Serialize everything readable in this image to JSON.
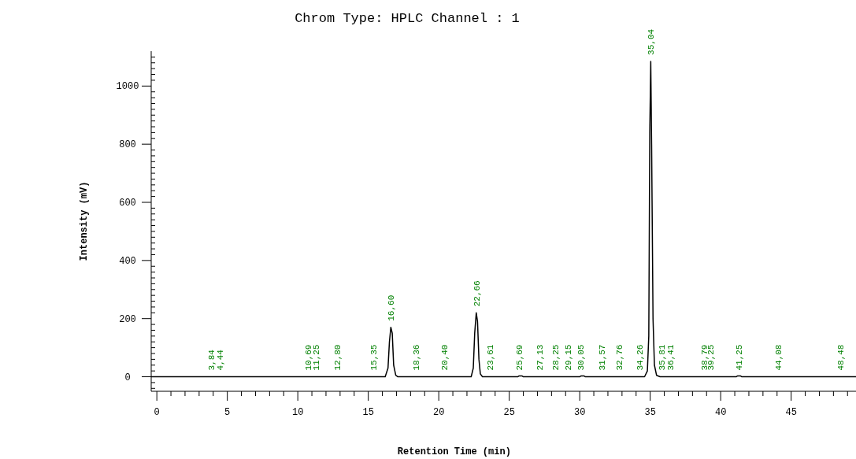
{
  "chart_data": {
    "type": "line",
    "title": "Chrom Type: HPLC Channel : 1",
    "xlabel": "Retention Time (min)",
    "ylabel": "Intensity (mV)",
    "xlim": [
      -0.4,
      49.6
    ],
    "ylim": [
      -50,
      1120
    ],
    "xticks": [
      0,
      {
        "value": 1,
        "label": null
      },
      {
        "value": 2,
        "label": null
      },
      {
        "value": 3,
        "label": null
      },
      {
        "value": 4,
        "label": null
      },
      5,
      {
        "value": 6,
        "label": null
      },
      {
        "value": 7,
        "label": null
      },
      {
        "value": 8,
        "label": null
      },
      {
        "value": 9,
        "label": null
      },
      10,
      {
        "value": 11,
        "label": null
      },
      {
        "value": 12,
        "label": null
      },
      {
        "value": 13,
        "label": null
      },
      {
        "value": 14,
        "label": null
      },
      15,
      {
        "value": 16,
        "label": null
      },
      {
        "value": 17,
        "label": null
      },
      {
        "value": 18,
        "label": null
      },
      {
        "value": 19,
        "label": null
      },
      20,
      {
        "value": 21,
        "label": null
      },
      {
        "value": 22,
        "label": null
      },
      {
        "value": 23,
        "label": null
      },
      {
        "value": 24,
        "label": null
      },
      25,
      {
        "value": 26,
        "label": null
      },
      {
        "value": 27,
        "label": null
      },
      {
        "value": 28,
        "label": null
      },
      {
        "value": 29,
        "label": null
      },
      30,
      {
        "value": 31,
        "label": null
      },
      {
        "value": 32,
        "label": null
      },
      {
        "value": 33,
        "label": null
      },
      {
        "value": 34,
        "label": null
      },
      35,
      {
        "value": 36,
        "label": null
      },
      {
        "value": 37,
        "label": null
      },
      {
        "value": 38,
        "label": null
      },
      {
        "value": 39,
        "label": null
      },
      40,
      {
        "value": 41,
        "label": null
      },
      {
        "value": 42,
        "label": null
      },
      {
        "value": 43,
        "label": null
      },
      {
        "value": 44,
        "label": null
      },
      45,
      {
        "value": 46,
        "label": null
      },
      {
        "value": 47,
        "label": null
      },
      {
        "value": 48,
        "label": null
      },
      {
        "value": 49,
        "label": null
      }
    ],
    "yticks": [
      {
        "value": -40,
        "label": null
      },
      {
        "value": -20,
        "label": null
      },
      0,
      {
        "value": 20,
        "label": null
      },
      {
        "value": 40,
        "label": null
      },
      {
        "value": 60,
        "label": null
      },
      {
        "value": 80,
        "label": null
      },
      {
        "value": 100,
        "label": null
      },
      {
        "value": 120,
        "label": null
      },
      {
        "value": 140,
        "label": null
      },
      {
        "value": 160,
        "label": null
      },
      {
        "value": 180,
        "label": null
      },
      200,
      {
        "value": 220,
        "label": null
      },
      {
        "value": 240,
        "label": null
      },
      {
        "value": 260,
        "label": null
      },
      {
        "value": 280,
        "label": null
      },
      {
        "value": 300,
        "label": null
      },
      {
        "value": 320,
        "label": null
      },
      {
        "value": 340,
        "label": null
      },
      {
        "value": 360,
        "label": null
      },
      {
        "value": 380,
        "label": null
      },
      400,
      {
        "value": 420,
        "label": null
      },
      {
        "value": 440,
        "label": null
      },
      {
        "value": 460,
        "label": null
      },
      {
        "value": 480,
        "label": null
      },
      {
        "value": 500,
        "label": null
      },
      {
        "value": 520,
        "label": null
      },
      {
        "value": 540,
        "label": null
      },
      {
        "value": 560,
        "label": null
      },
      {
        "value": 580,
        "label": null
      },
      600,
      {
        "value": 620,
        "label": null
      },
      {
        "value": 640,
        "label": null
      },
      {
        "value": 660,
        "label": null
      },
      {
        "value": 680,
        "label": null
      },
      {
        "value": 700,
        "label": null
      },
      {
        "value": 720,
        "label": null
      },
      {
        "value": 740,
        "label": null
      },
      {
        "value": 760,
        "label": null
      },
      {
        "value": 780,
        "label": null
      },
      800,
      {
        "value": 820,
        "label": null
      },
      {
        "value": 840,
        "label": null
      },
      {
        "value": 860,
        "label": null
      },
      {
        "value": 880,
        "label": null
      },
      {
        "value": 900,
        "label": null
      },
      {
        "value": 920,
        "label": null
      },
      {
        "value": 940,
        "label": null
      },
      {
        "value": 960,
        "label": null
      },
      {
        "value": 980,
        "label": null
      },
      1000,
      {
        "value": 1020,
        "label": null
      },
      {
        "value": 1040,
        "label": null
      },
      {
        "value": 1060,
        "label": null
      },
      {
        "value": 1080,
        "label": null
      },
      {
        "value": 1100,
        "label": null
      }
    ],
    "grid": false,
    "line_style": "solid",
    "series": [
      {
        "color": "#000000",
        "x": [
          -0.4,
          16.2,
          16.4,
          16.5,
          16.6,
          16.7,
          16.8,
          16.95,
          17.1,
          22.3,
          22.45,
          22.55,
          22.66,
          22.75,
          22.85,
          22.95,
          23.1,
          25.6,
          25.7,
          25.9,
          26.0,
          30.0,
          30.1,
          30.3,
          30.4,
          34.6,
          34.8,
          34.9,
          34.97,
          35.04,
          35.1,
          35.2,
          35.3,
          35.45,
          35.7,
          41.1,
          41.2,
          41.4,
          41.5,
          49.6
        ],
        "values": [
          0,
          0,
          30,
          120,
          170,
          150,
          40,
          5,
          0,
          0,
          30,
          150,
          220,
          190,
          60,
          10,
          0,
          0,
          3,
          3,
          0,
          0,
          3,
          3,
          0,
          0,
          20,
          140,
          840,
          1085,
          800,
          200,
          40,
          5,
          0,
          0,
          3,
          3,
          0,
          0
        ]
      }
    ],
    "annotations": [
      {
        "text": "3,84",
        "x": 3.84,
        "y": 0
      },
      {
        "text": "4,44",
        "x": 4.44,
        "y": 0
      },
      {
        "text": "10,69",
        "x": 10.69,
        "y": 0
      },
      {
        "text": "11,25",
        "x": 11.25,
        "y": 0
      },
      {
        "text": "12,80",
        "x": 12.8,
        "y": 0
      },
      {
        "text": "15,35",
        "x": 15.35,
        "y": 0
      },
      {
        "text": "16,60",
        "x": 16.6,
        "y": 170
      },
      {
        "text": "18,36",
        "x": 18.36,
        "y": 0
      },
      {
        "text": "20,40",
        "x": 20.4,
        "y": 0
      },
      {
        "text": "22,66",
        "x": 22.66,
        "y": 220
      },
      {
        "text": "23,61",
        "x": 23.61,
        "y": 0
      },
      {
        "text": "25,69",
        "x": 25.69,
        "y": 0
      },
      {
        "text": "27,13",
        "x": 27.13,
        "y": 0
      },
      {
        "text": "28,25",
        "x": 28.25,
        "y": 0
      },
      {
        "text": "29,15",
        "x": 29.15,
        "y": 0
      },
      {
        "text": "30,05",
        "x": 30.05,
        "y": 0
      },
      {
        "text": "31,57",
        "x": 31.57,
        "y": 0
      },
      {
        "text": "32,76",
        "x": 32.76,
        "y": 0
      },
      {
        "text": "34,26",
        "x": 34.26,
        "y": 0
      },
      {
        "text": "35,04",
        "x": 35.04,
        "y": 1085
      },
      {
        "text": "35,81",
        "x": 35.81,
        "y": 0
      },
      {
        "text": "36,41",
        "x": 36.41,
        "y": 0
      },
      {
        "text": "38,79",
        "x": 38.79,
        "y": 0
      },
      {
        "text": "39,25",
        "x": 39.25,
        "y": 0
      },
      {
        "text": "41,25",
        "x": 41.25,
        "y": 0
      },
      {
        "text": "44,08",
        "x": 44.08,
        "y": 0
      },
      {
        "text": "48,48",
        "x": 48.48,
        "y": 0
      }
    ]
  }
}
